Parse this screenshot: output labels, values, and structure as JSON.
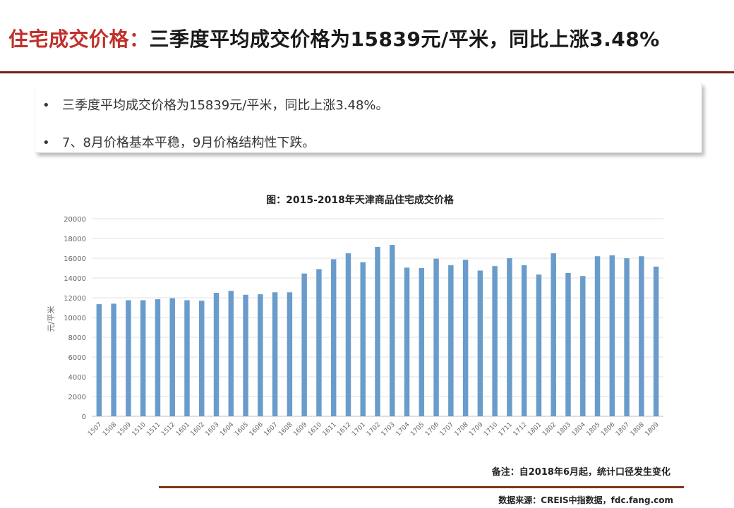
{
  "header": {
    "title_red": "住宅成交价格：",
    "title_black": "三季度平均成交价格为15839元/平米，同比上涨3.48%"
  },
  "bullets": [
    {
      "marker": "•",
      "text": "三季度平均成交价格为15839元/平米，同比上涨3.48%。"
    },
    {
      "marker": "•",
      "text": "7、8月价格基本平稳，9月价格结构性下跌。"
    }
  ],
  "note": "备注：自2018年6月起，统计口径发生变化",
  "source": "数据来源：CREIS中指数据，fdc.fang.com",
  "colors": {
    "bar": "#6a9ccb",
    "title_red": "#c0302a",
    "rule": "#7a1f1a"
  },
  "chart_data": {
    "type": "bar",
    "title": "图：2015-2018年天津商品住宅成交价格",
    "xlabel": "",
    "ylabel": "元/平米",
    "ylim": [
      0,
      20000
    ],
    "yticks": [
      "0",
      "2000",
      "4000",
      "6000",
      "8000",
      "10000",
      "12000",
      "14000",
      "16000",
      "18000",
      "20000"
    ],
    "grid": true,
    "categories": [
      "1507",
      "1508",
      "1509",
      "1510",
      "1511",
      "1512",
      "1601",
      "1602",
      "1603",
      "1604",
      "1605",
      "1606",
      "1607",
      "1608",
      "1609",
      "1610",
      "1611",
      "1612",
      "1701",
      "1702",
      "1703",
      "1704",
      "1705",
      "1706",
      "1707",
      "1708",
      "1709",
      "1710",
      "1711",
      "1712",
      "1801",
      "1802",
      "1803",
      "1804",
      "1805",
      "1806",
      "1807",
      "1808",
      "1809"
    ],
    "values": [
      11350,
      11400,
      11750,
      11750,
      11850,
      11950,
      11750,
      11700,
      12500,
      12700,
      12300,
      12350,
      12550,
      12550,
      14450,
      14900,
      15900,
      16500,
      15600,
      17150,
      17350,
      15050,
      15000,
      15950,
      15300,
      15850,
      14750,
      15200,
      16000,
      15300,
      14350,
      16500,
      14500,
      14200,
      16200,
      16300,
      16000,
      16200,
      15150
    ]
  }
}
